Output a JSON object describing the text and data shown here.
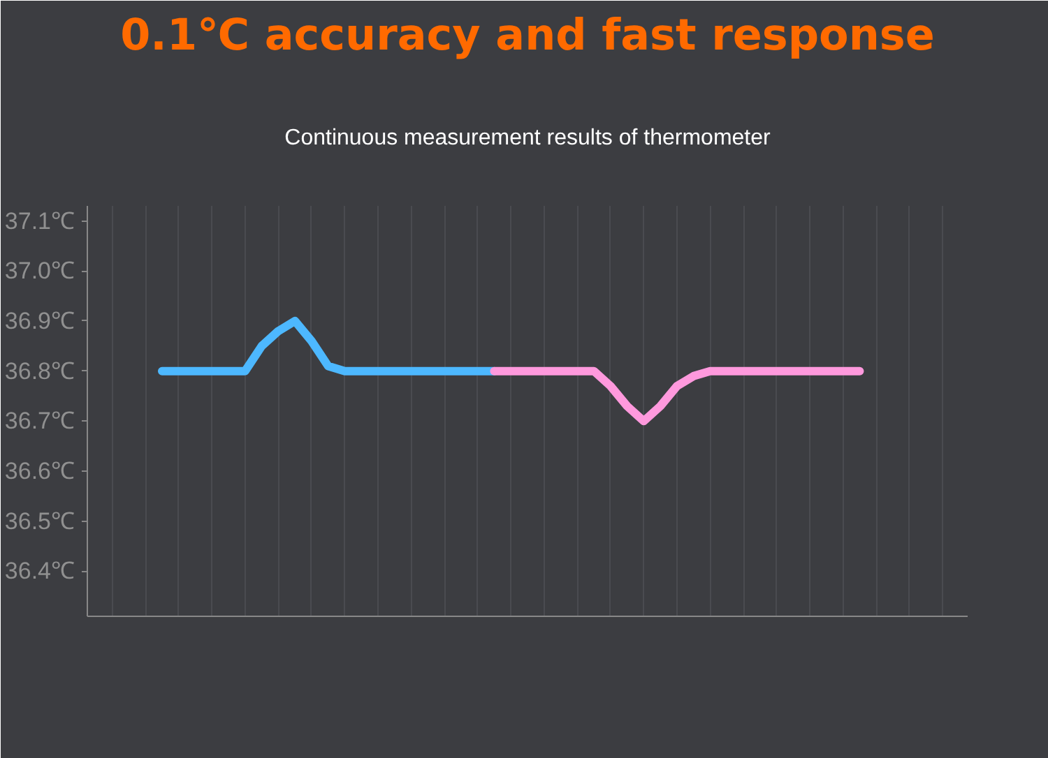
{
  "chart_data": {
    "type": "line",
    "title": "0.1℃ accuracy and fast response",
    "subtitle": "Continuous measurement results of thermometer",
    "categories": [
      null,
      null,
      null,
      null,
      null,
      null,
      null,
      null,
      null,
      null,
      null,
      null,
      null,
      null,
      null,
      null,
      null,
      null,
      null,
      null,
      null,
      null,
      null,
      null,
      null,
      null,
      null,
      null,
      null,
      null,
      null,
      null,
      null,
      null,
      null,
      null,
      null,
      null,
      null,
      null,
      null,
      null,
      null,
      null,
      null,
      null,
      null,
      null,
      null,
      null,
      null,
      null,
      null
    ],
    "series": [
      {
        "color": "#4db8ff",
        "values": [
          null,
          null,
          null,
          null,
          36.8,
          36.8,
          36.8,
          36.8,
          36.8,
          36.8,
          36.85,
          36.88,
          36.9,
          36.86,
          36.81,
          36.8,
          36.8,
          36.8,
          36.8,
          36.8,
          36.8,
          36.8,
          36.8,
          36.8,
          36.8,
          null,
          null,
          null,
          null,
          null,
          null,
          null,
          null,
          null,
          null,
          null,
          null,
          null,
          null,
          null,
          null,
          null,
          null,
          null,
          null,
          null,
          null,
          null,
          null,
          null,
          null,
          null,
          null
        ]
      },
      {
        "color": "#ff99dd",
        "values": [
          null,
          null,
          null,
          null,
          null,
          null,
          null,
          null,
          null,
          null,
          null,
          null,
          null,
          null,
          null,
          null,
          null,
          null,
          null,
          null,
          null,
          null,
          null,
          null,
          36.8,
          36.8,
          36.8,
          36.8,
          36.8,
          36.8,
          36.8,
          36.77,
          36.73,
          36.7,
          36.73,
          36.77,
          36.79,
          36.8,
          36.8,
          36.8,
          36.8,
          36.8,
          36.8,
          36.8,
          36.8,
          36.8,
          36.8,
          null,
          null,
          null,
          null,
          null,
          null
        ]
      }
    ],
    "ylim": [
      36.31,
      37.13
    ],
    "yticks": [
      {
        "value": 36.4,
        "label": "36.4℃"
      },
      {
        "value": 36.5,
        "label": "36.5℃"
      },
      {
        "value": 36.6,
        "label": "36.6℃"
      },
      {
        "value": 36.7,
        "label": "36.7℃"
      },
      {
        "value": 36.8,
        "label": "36.8℃"
      },
      {
        "value": 36.9,
        "label": "36.9℃"
      },
      {
        "value": 37.0,
        "label": "37.0℃"
      },
      {
        "value": 37.1,
        "label": "37.1℃"
      }
    ],
    "grid": "x",
    "tick_labels": "y",
    "marker": "none",
    "line_style": "solid"
  }
}
